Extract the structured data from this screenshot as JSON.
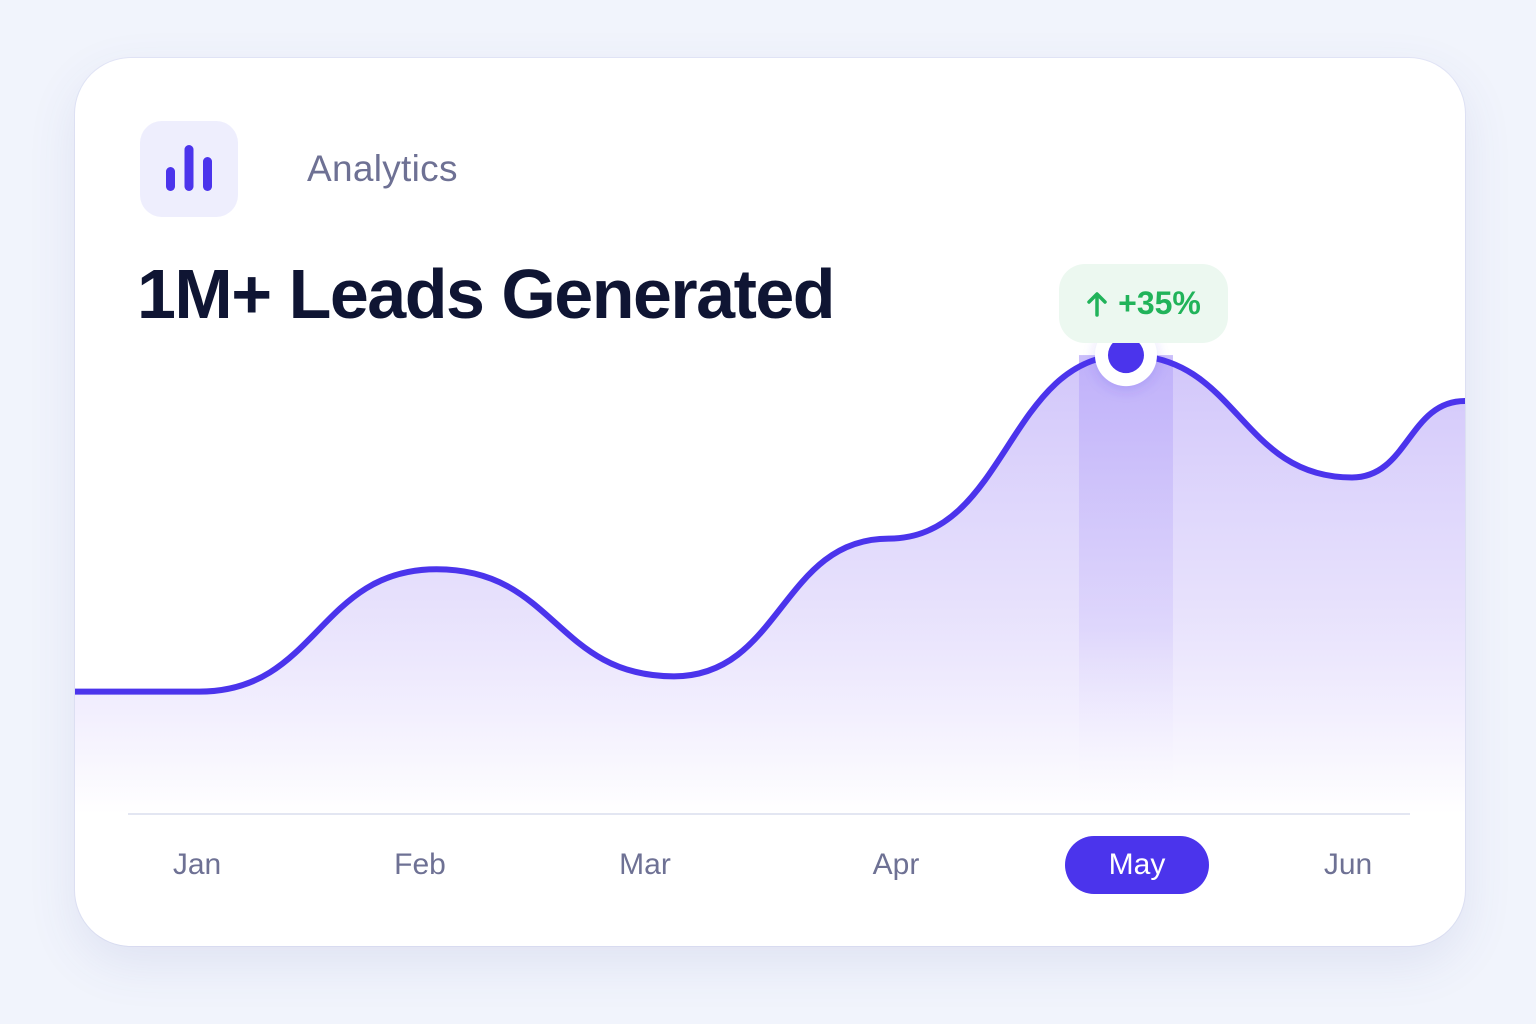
{
  "header": {
    "icon": "bar-chart-icon",
    "section_label": "Analytics",
    "headline": "1M+ Leads Generated"
  },
  "badge": {
    "icon": "arrow-up-icon",
    "text": "+35%",
    "color": "#21b35a"
  },
  "colors": {
    "accent": "#4b34ec",
    "area_fill": "#ddd5fb",
    "highlight_band": "#c9bdfa",
    "badge_bg": "#ecf8f0"
  },
  "chart_data": {
    "type": "area",
    "categories": [
      "Jan",
      "Feb",
      "Mar",
      "Apr",
      "May",
      "Jun"
    ],
    "highlighted_category": "May",
    "x": [
      0.0,
      1.05,
      2.1,
      3.05,
      4.1,
      5.1,
      5.6
    ],
    "values": [
      10,
      50,
      15,
      60,
      120,
      80,
      105
    ],
    "highlight_x": 4.1,
    "xlim": [
      -0.55,
      5.6
    ],
    "ylim": [
      -30,
      155
    ],
    "grid": false,
    "legend": "none"
  }
}
